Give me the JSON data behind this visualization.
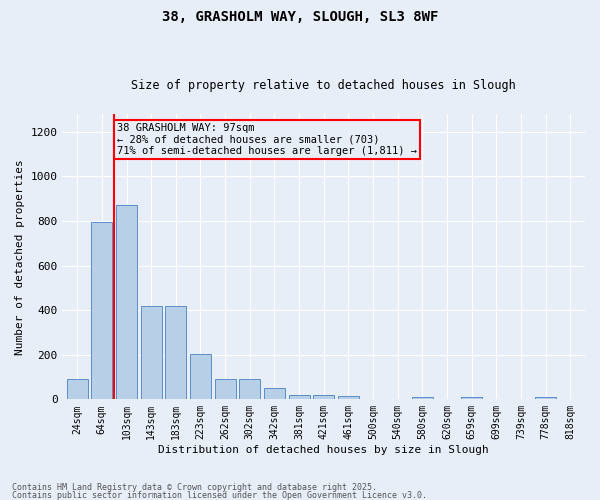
{
  "title1": "38, GRASHOLM WAY, SLOUGH, SL3 8WF",
  "title2": "Size of property relative to detached houses in Slough",
  "xlabel": "Distribution of detached houses by size in Slough",
  "ylabel": "Number of detached properties",
  "categories": [
    "24sqm",
    "64sqm",
    "103sqm",
    "143sqm",
    "183sqm",
    "223sqm",
    "262sqm",
    "302sqm",
    "342sqm",
    "381sqm",
    "421sqm",
    "461sqm",
    "500sqm",
    "540sqm",
    "580sqm",
    "620sqm",
    "659sqm",
    "699sqm",
    "739sqm",
    "778sqm",
    "818sqm"
  ],
  "values": [
    90,
    795,
    870,
    420,
    420,
    205,
    90,
    90,
    50,
    20,
    20,
    15,
    0,
    0,
    10,
    0,
    10,
    0,
    0,
    10,
    0
  ],
  "bar_color": "#b8cfe8",
  "bar_edge_color": "#5b8dc8",
  "vline_color": "red",
  "annotation_text": "38 GRASHOLM WAY: 97sqm\n← 28% of detached houses are smaller (703)\n71% of semi-detached houses are larger (1,811) →",
  "annotation_box_color": "red",
  "ylim": [
    0,
    1280
  ],
  "yticks": [
    0,
    200,
    400,
    600,
    800,
    1000,
    1200
  ],
  "background_color": "#e8eef8",
  "grid_color": "white",
  "footnote1": "Contains HM Land Registry data © Crown copyright and database right 2025.",
  "footnote2": "Contains public sector information licensed under the Open Government Licence v3.0."
}
